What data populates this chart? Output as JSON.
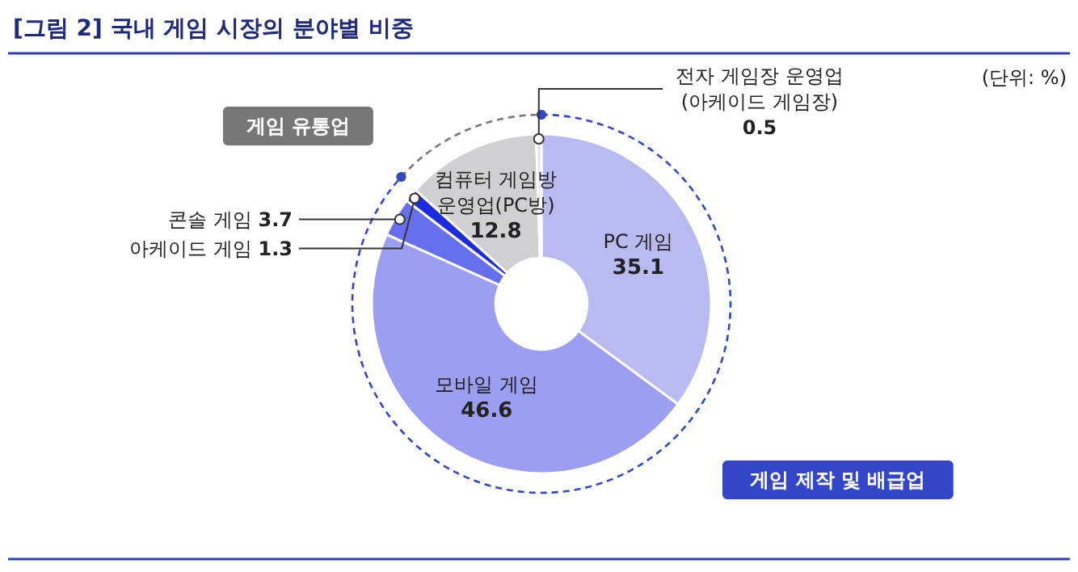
{
  "chart_data": {
    "type": "donut",
    "title": "[그림 2] 국내 게임 시장의 분야별 비중",
    "categories": [
      "PC 게임",
      "모바일 게임",
      "콘솔 게임",
      "아케이드 게임",
      "컴퓨터 게임방 운영업(PC방)",
      "전자 게임장 운영업 (아케이드 게임장)"
    ],
    "values": [
      35.1,
      46.6,
      3.7,
      1.3,
      12.8,
      0.5
    ],
    "colors": [
      "#b9baf0",
      "#9c9ef2",
      "#6670ee",
      "#1c2be0",
      "#d0d0d2",
      "#e2e2e4"
    ],
    "data_labels": true,
    "annotations": [
      "(단위: %)",
      "게임 유통업",
      "게임 제작 및 배급업"
    ]
  }
}
